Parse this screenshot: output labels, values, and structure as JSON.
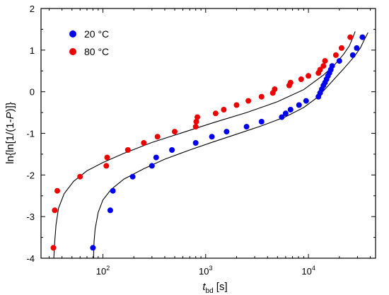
{
  "chart_data": {
    "type": "scatter",
    "x_scale": "log",
    "xlim": [
      25,
      45000
    ],
    "ylim": [
      -4,
      2
    ],
    "x_ticks": [
      100,
      1000,
      10000
    ],
    "y_ticks": [
      -4,
      -3,
      -2,
      -1,
      0,
      1,
      2
    ],
    "x_tick_labels": [
      {
        "base": "10",
        "exp": "2"
      },
      {
        "base": "10",
        "exp": "3"
      },
      {
        "base": "10",
        "exp": "4"
      }
    ],
    "y_tick_labels": [
      "-4",
      "-3",
      "-2",
      "-1",
      "0",
      "1",
      "2"
    ],
    "xlabel": {
      "main": "t",
      "sub": "bd",
      "unit": " [s]"
    },
    "ylabel": {
      "prefix": "ln{ln[1/(1-",
      "var": "P",
      "suffix": ")]}"
    },
    "legend_position": "top-left",
    "series": [
      {
        "name": "20 °C",
        "color": "#0000ee",
        "points": [
          [
            80,
            -3.75
          ],
          [
            118,
            -2.85
          ],
          [
            125,
            -2.38
          ],
          [
            195,
            -2.04
          ],
          [
            300,
            -1.78
          ],
          [
            330,
            -1.58
          ],
          [
            470,
            -1.4
          ],
          [
            800,
            -1.23
          ],
          [
            1150,
            -1.08
          ],
          [
            1600,
            -0.96
          ],
          [
            2500,
            -0.84
          ],
          [
            3500,
            -0.72
          ],
          [
            5500,
            -0.61
          ],
          [
            6000,
            -0.52
          ],
          [
            6700,
            -0.43
          ],
          [
            8100,
            -0.32
          ],
          [
            9500,
            -0.22
          ],
          [
            12500,
            -0.12
          ],
          [
            13000,
            -0.03
          ],
          [
            13500,
            0.06
          ],
          [
            14000,
            0.15
          ],
          [
            14500,
            0.22
          ],
          [
            15000,
            0.3
          ],
          [
            15500,
            0.38
          ],
          [
            16000,
            0.45
          ],
          [
            16500,
            0.53
          ],
          [
            17000,
            0.62
          ],
          [
            20000,
            0.74
          ],
          [
            27000,
            0.88
          ],
          [
            29500,
            1.05
          ],
          [
            33500,
            1.31
          ]
        ]
      },
      {
        "name": "80 °C",
        "color": "#ee0000",
        "points": [
          [
            33,
            -3.75
          ],
          [
            34,
            -2.85
          ],
          [
            36,
            -2.38
          ],
          [
            60,
            -2.04
          ],
          [
            108,
            -1.78
          ],
          [
            110,
            -1.58
          ],
          [
            175,
            -1.4
          ],
          [
            250,
            -1.23
          ],
          [
            340,
            -1.08
          ],
          [
            500,
            -0.96
          ],
          [
            800,
            -0.84
          ],
          [
            810,
            -0.72
          ],
          [
            830,
            -0.61
          ],
          [
            1250,
            -0.52
          ],
          [
            1500,
            -0.43
          ],
          [
            2000,
            -0.32
          ],
          [
            2600,
            -0.22
          ],
          [
            3500,
            -0.12
          ],
          [
            4500,
            -0.03
          ],
          [
            4700,
            0.06
          ],
          [
            6500,
            0.15
          ],
          [
            6700,
            0.22
          ],
          [
            8500,
            0.3
          ],
          [
            10000,
            0.38
          ],
          [
            12500,
            0.45
          ],
          [
            13000,
            0.53
          ],
          [
            14000,
            0.62
          ],
          [
            14500,
            0.74
          ],
          [
            18500,
            0.88
          ],
          [
            21000,
            1.05
          ],
          [
            25500,
            1.31
          ]
        ]
      }
    ],
    "fit_curves": [
      {
        "series": "20 °C",
        "points": [
          [
            81,
            -4.0
          ],
          [
            82,
            -3.6
          ],
          [
            84,
            -3.3
          ],
          [
            90,
            -2.9
          ],
          [
            100,
            -2.6
          ],
          [
            120,
            -2.35
          ],
          [
            160,
            -2.1
          ],
          [
            250,
            -1.85
          ],
          [
            400,
            -1.62
          ],
          [
            700,
            -1.4
          ],
          [
            1200,
            -1.2
          ],
          [
            2000,
            -1.02
          ],
          [
            3500,
            -0.82
          ],
          [
            6000,
            -0.6
          ],
          [
            9000,
            -0.38
          ],
          [
            12000,
            -0.15
          ],
          [
            15000,
            0.1
          ],
          [
            17000,
            0.25
          ],
          [
            22000,
            0.55
          ],
          [
            28000,
            0.85
          ],
          [
            32000,
            1.05
          ],
          [
            35000,
            1.25
          ],
          [
            38000,
            1.42
          ]
        ]
      },
      {
        "series": "80 °C",
        "points": [
          [
            33.3,
            -4.0
          ],
          [
            34,
            -3.6
          ],
          [
            35,
            -3.2
          ],
          [
            37,
            -2.8
          ],
          [
            42,
            -2.45
          ],
          [
            52,
            -2.15
          ],
          [
            70,
            -1.9
          ],
          [
            100,
            -1.7
          ],
          [
            160,
            -1.48
          ],
          [
            300,
            -1.22
          ],
          [
            600,
            -0.98
          ],
          [
            1200,
            -0.74
          ],
          [
            2500,
            -0.5
          ],
          [
            5000,
            -0.24
          ],
          [
            9000,
            0.05
          ],
          [
            14000,
            0.4
          ],
          [
            18000,
            0.65
          ],
          [
            22000,
            0.9
          ],
          [
            25000,
            1.1
          ],
          [
            27000,
            1.3
          ],
          [
            28500,
            1.45
          ]
        ]
      }
    ]
  }
}
